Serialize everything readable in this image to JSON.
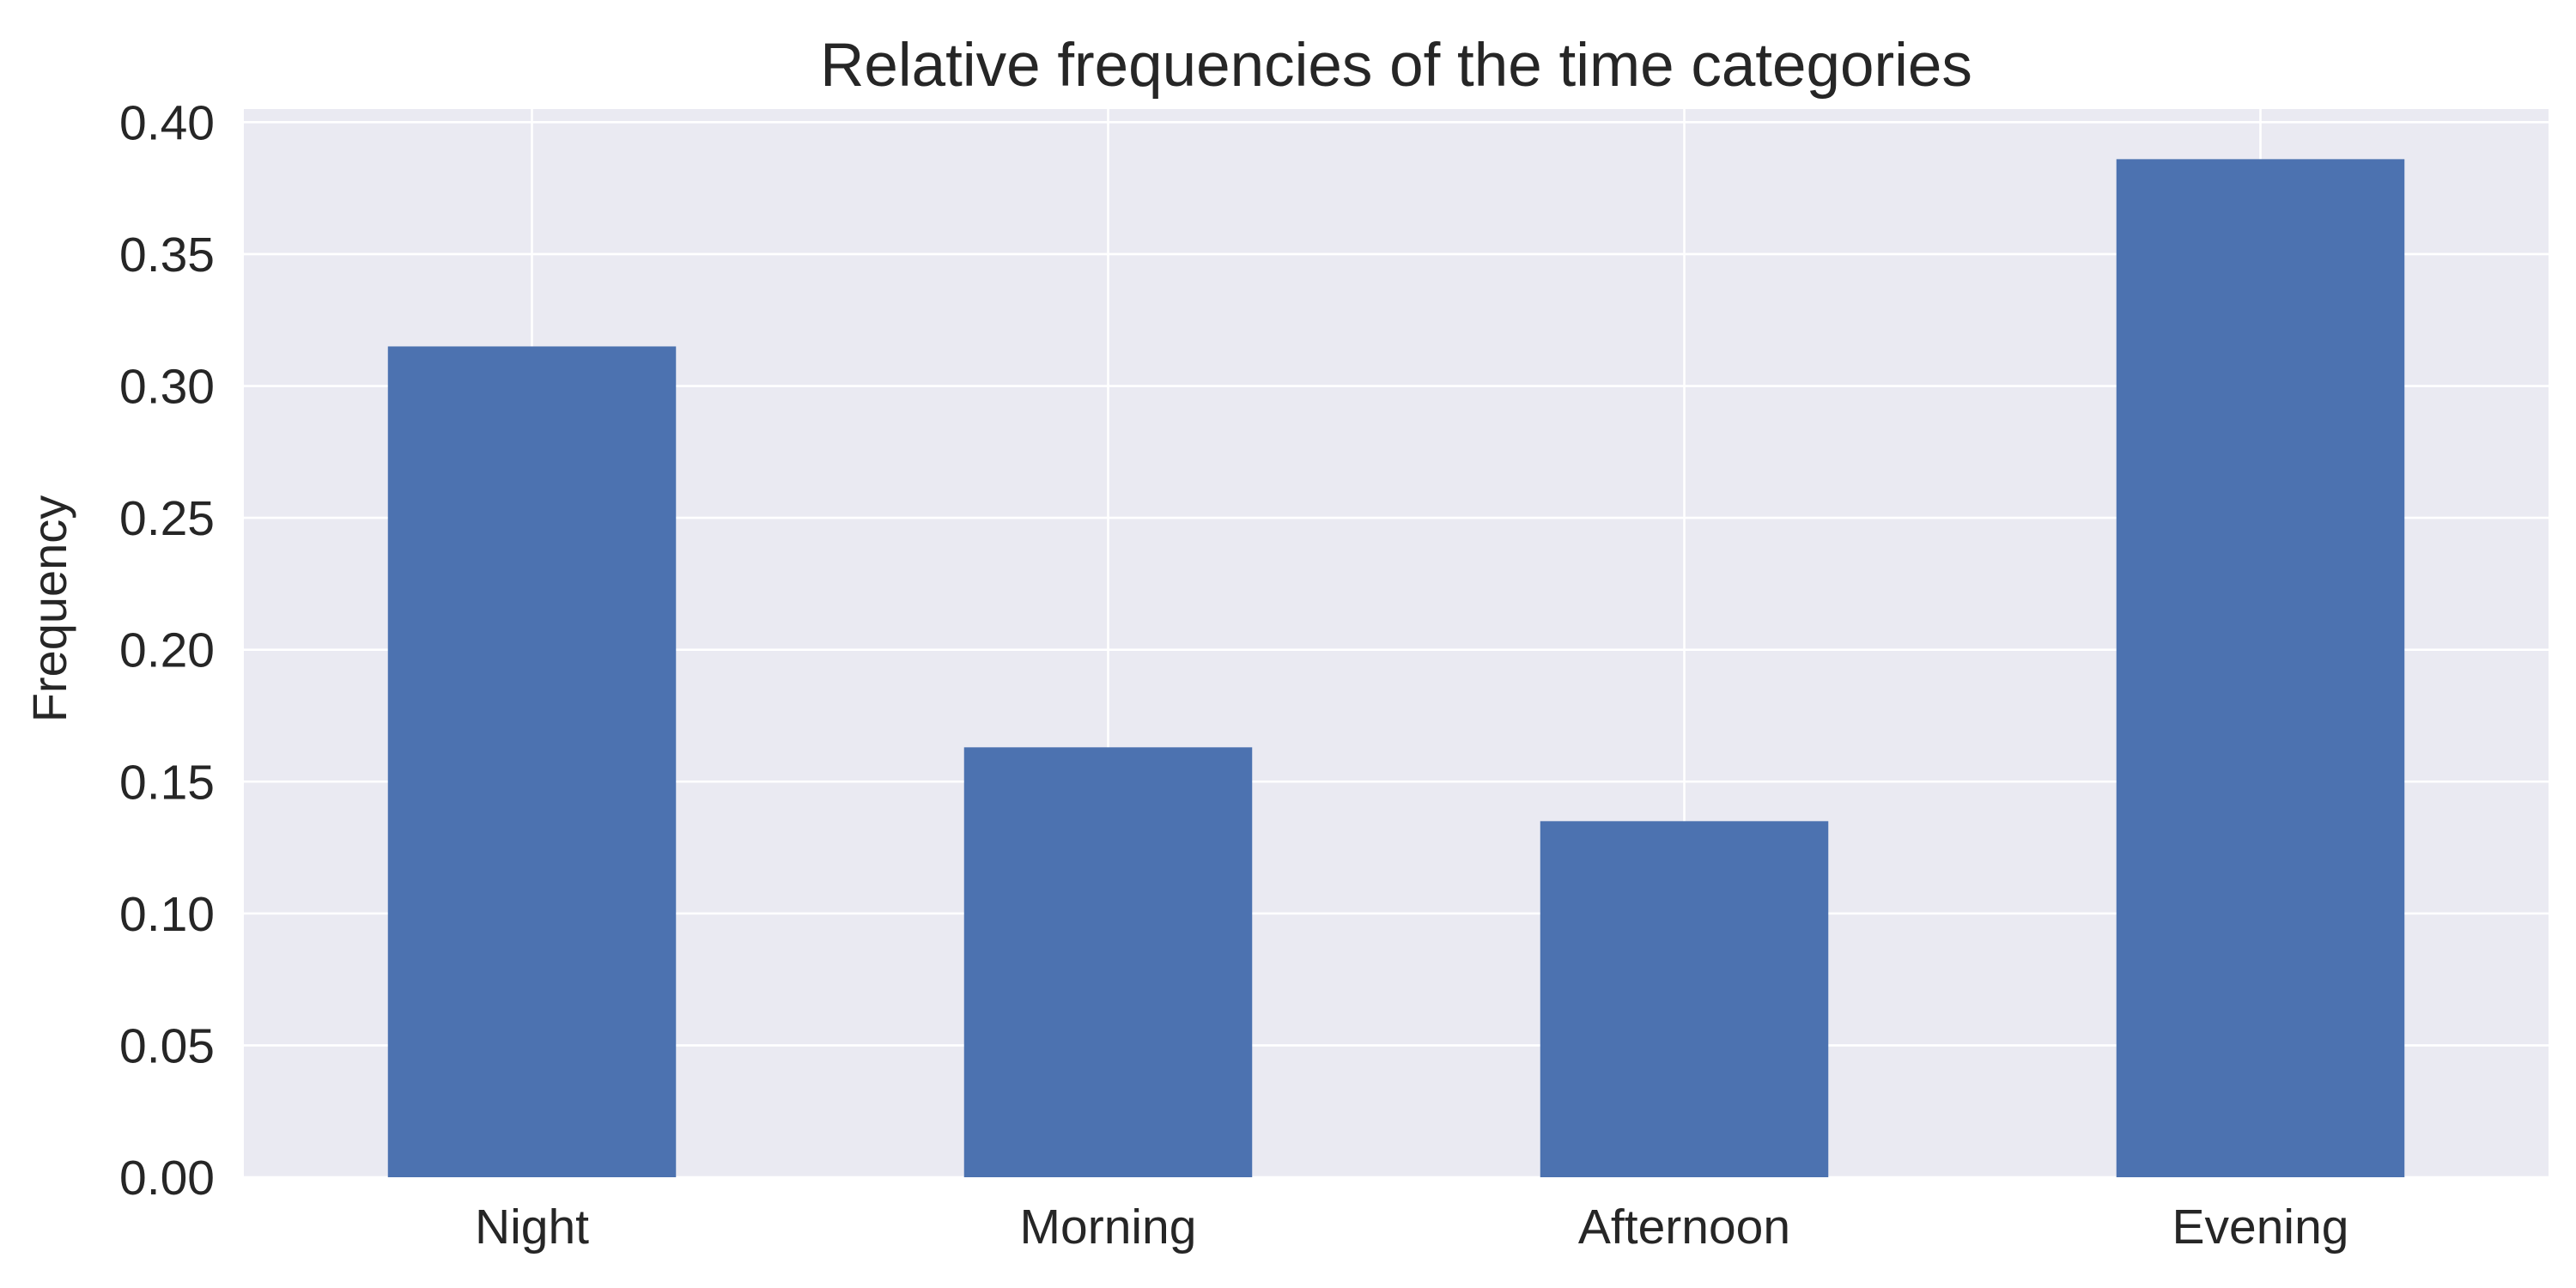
{
  "chart_data": {
    "type": "bar",
    "title": "Relative frequencies of the time categories",
    "xlabel": "",
    "ylabel": "Frequency",
    "categories": [
      "Night",
      "Morning",
      "Afternoon",
      "Evening"
    ],
    "values": [
      0.315,
      0.163,
      0.135,
      0.386
    ],
    "ylim": [
      0,
      0.405
    ],
    "yticks": [
      0.0,
      0.05,
      0.1,
      0.15,
      0.2,
      0.25,
      0.3,
      0.35,
      0.4
    ],
    "ytick_labels": [
      "0.00",
      "0.05",
      "0.10",
      "0.15",
      "0.20",
      "0.25",
      "0.30",
      "0.35",
      "0.40"
    ],
    "grid": true,
    "legend": false,
    "colors": {
      "bar": "#4c72b0",
      "plot_background": "#eaeaf2",
      "grid": "#ffffff",
      "text": "#262626"
    }
  }
}
